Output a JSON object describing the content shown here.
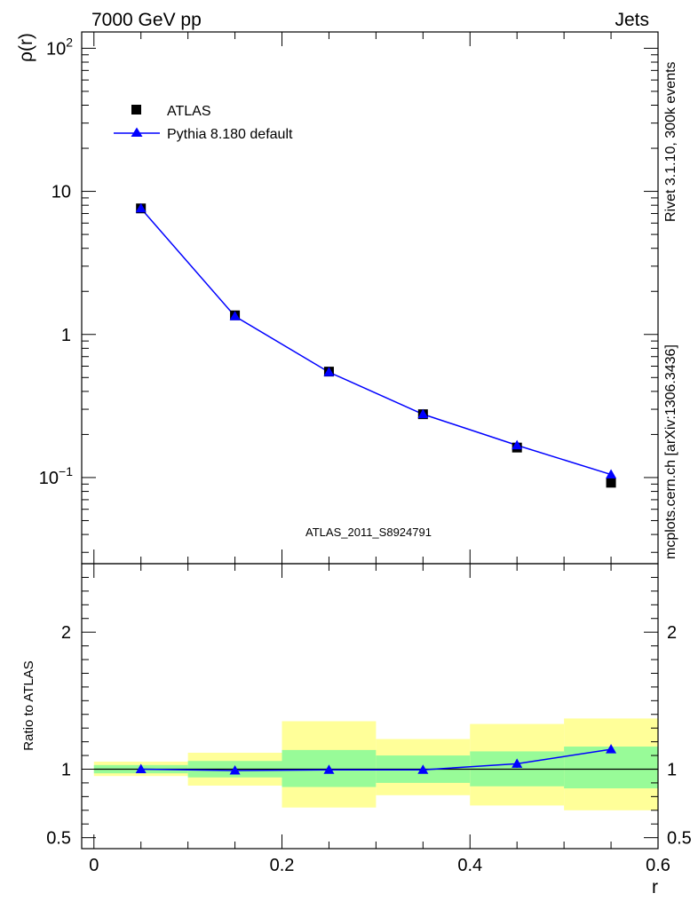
{
  "header": {
    "left": "7000 GeV pp",
    "right": "Jets"
  },
  "side_text": {
    "rivet": "Rivet 3.1.10,  300k events",
    "mcplots": "mcplots.cern.ch [arXiv:1306.3436]"
  },
  "chart_data": [
    {
      "type": "scatter",
      "panel": "main",
      "title": "",
      "xlabel": "r",
      "ylabel": "ρ(r)",
      "yscale": "log",
      "xlim": [
        -0.013,
        0.6
      ],
      "ylim": [
        0.025,
        130
      ],
      "y_tick_labels": [
        {
          "value": 0.1,
          "base": "10",
          "exp": "−1"
        },
        {
          "value": 1,
          "base": "1",
          "exp": ""
        },
        {
          "value": 10,
          "base": "10",
          "exp": ""
        },
        {
          "value": 100,
          "base": "10",
          "exp": "2"
        }
      ],
      "watermark": "ATLAS_2011_S8924791",
      "legend": [
        {
          "label": "ATLAS",
          "marker": "square",
          "color": "#000000"
        },
        {
          "label": "Pythia 8.180 default",
          "marker": "triangle",
          "color": "#0000ff"
        }
      ],
      "series": [
        {
          "name": "ATLAS",
          "x": [
            0.05,
            0.15,
            0.25,
            0.35,
            0.45,
            0.55
          ],
          "values": [
            7.6,
            1.36,
            0.55,
            0.277,
            0.162,
            0.092
          ]
        },
        {
          "name": "Pythia 8.180 default",
          "x": [
            0.05,
            0.15,
            0.25,
            0.35,
            0.45,
            0.55
          ],
          "values": [
            7.6,
            1.34,
            0.545,
            0.277,
            0.168,
            0.105
          ]
        }
      ]
    },
    {
      "type": "scatter",
      "panel": "ratio",
      "xlabel": "r",
      "ylabel": "Ratio to ATLAS",
      "xlim": [
        -0.013,
        0.6
      ],
      "ylim": [
        0.42,
        2.5
      ],
      "x_ticks": [
        0,
        0.2,
        0.4,
        0.6
      ],
      "x_tick_labels": [
        "0",
        "0.2",
        "0.4",
        "0.6"
      ],
      "y_ticks": [
        0.5,
        1,
        2
      ],
      "y_tick_labels": [
        "0.5",
        "1",
        "2"
      ],
      "bands": [
        {
          "x_range": [
            0.0,
            0.1
          ],
          "green": [
            0.97,
            1.03
          ],
          "yellow": [
            0.95,
            1.055
          ]
        },
        {
          "x_range": [
            0.1,
            0.2
          ],
          "green": [
            0.94,
            1.06
          ],
          "yellow": [
            0.88,
            1.12
          ]
        },
        {
          "x_range": [
            0.2,
            0.3
          ],
          "green": [
            0.87,
            1.14
          ],
          "yellow": [
            0.72,
            1.35
          ]
        },
        {
          "x_range": [
            0.3,
            0.4
          ],
          "green": [
            0.9,
            1.1
          ],
          "yellow": [
            0.81,
            1.22
          ]
        },
        {
          "x_range": [
            0.4,
            0.5
          ],
          "green": [
            0.875,
            1.13
          ],
          "yellow": [
            0.735,
            1.33
          ]
        },
        {
          "x_range": [
            0.5,
            0.6
          ],
          "green": [
            0.86,
            1.165
          ],
          "yellow": [
            0.7,
            1.37
          ]
        }
      ],
      "series": [
        {
          "name": "Pythia 8.180 default / ATLAS",
          "x": [
            0.05,
            0.15,
            0.25,
            0.35,
            0.45,
            0.55
          ],
          "values": [
            1.0,
            0.99,
            0.995,
            0.995,
            1.04,
            1.145
          ],
          "errors": [
            0.005,
            0.02,
            0.025,
            0.025,
            0.03,
            0.02
          ]
        }
      ]
    }
  ],
  "colors": {
    "data": "#000000",
    "mc": "#0000ff",
    "band_green": "#98fb98",
    "band_yellow": "#ffff99",
    "gray_text": "#888888"
  }
}
